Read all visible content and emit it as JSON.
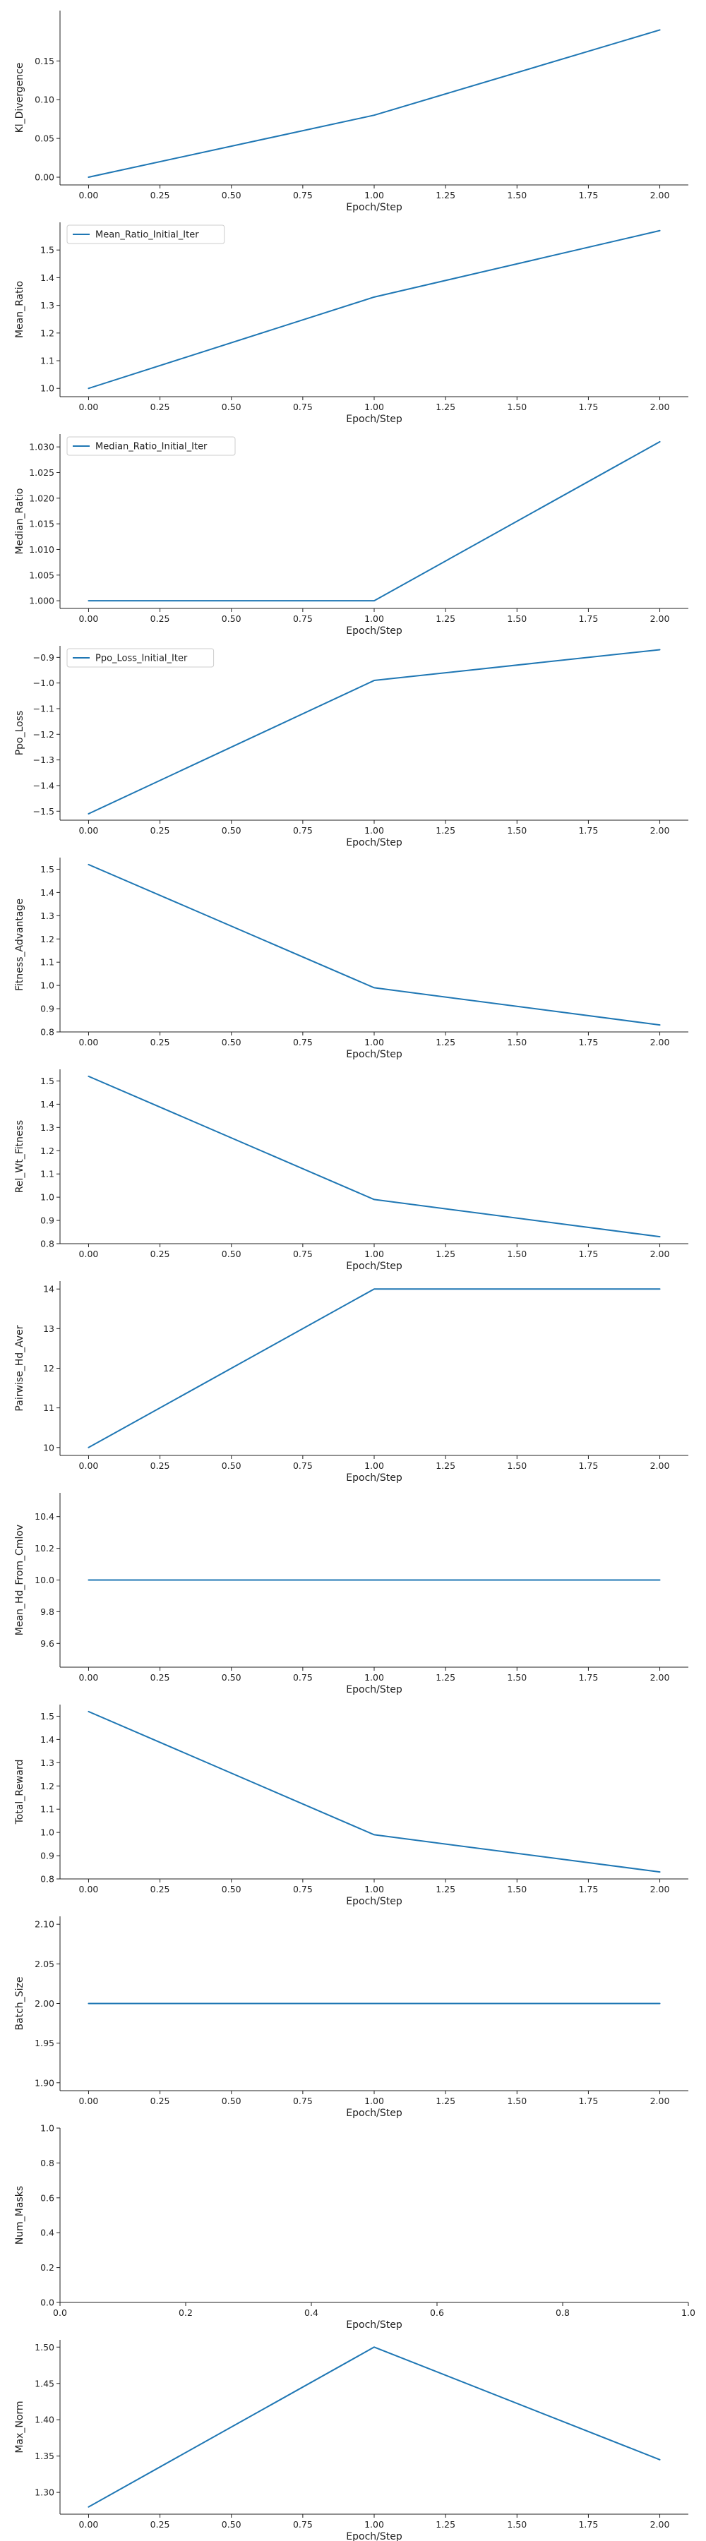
{
  "colors": {
    "line": "#1f77b4",
    "axis": "#222222",
    "legend_border": "#cccccc"
  },
  "chart_data": [
    {
      "type": "line",
      "xlabel": "Epoch/Step",
      "ylabel": "Kl_Divergence",
      "xlim": [
        -0.1,
        2.1
      ],
      "ylim": [
        -0.01,
        0.215
      ],
      "xticks": [
        0.0,
        0.25,
        0.5,
        0.75,
        1.0,
        1.25,
        1.5,
        1.75,
        2.0
      ],
      "xtick_labels": [
        "0.00",
        "0.25",
        "0.50",
        "0.75",
        "1.00",
        "1.25",
        "1.50",
        "1.75",
        "2.00"
      ],
      "yticks": [
        0.0,
        0.05,
        0.1,
        0.15
      ],
      "ytick_labels": [
        "0.00",
        "0.05",
        "0.10",
        "0.15"
      ],
      "series": [
        {
          "x": [
            0,
            1,
            2
          ],
          "values": [
            0.0,
            0.08,
            0.19
          ]
        }
      ]
    },
    {
      "type": "line",
      "xlabel": "Epoch/Step",
      "ylabel": "Mean_Ratio",
      "legend": "top-left",
      "xlim": [
        -0.1,
        2.1
      ],
      "ylim": [
        0.97,
        1.6
      ],
      "xticks": [
        0.0,
        0.25,
        0.5,
        0.75,
        1.0,
        1.25,
        1.5,
        1.75,
        2.0
      ],
      "xtick_labels": [
        "0.00",
        "0.25",
        "0.50",
        "0.75",
        "1.00",
        "1.25",
        "1.50",
        "1.75",
        "2.00"
      ],
      "yticks": [
        1.0,
        1.1,
        1.2,
        1.3,
        1.4,
        1.5
      ],
      "ytick_labels": [
        "1.0",
        "1.1",
        "1.2",
        "1.3",
        "1.4",
        "1.5"
      ],
      "series": [
        {
          "name": "Mean_Ratio_Initial_Iter",
          "x": [
            0,
            1,
            2
          ],
          "values": [
            1.0,
            1.33,
            1.57
          ]
        }
      ]
    },
    {
      "type": "line",
      "xlabel": "Epoch/Step",
      "ylabel": "Median_Ratio",
      "legend": "top-left",
      "xlim": [
        -0.1,
        2.1
      ],
      "ylim": [
        0.9985,
        1.0325
      ],
      "xticks": [
        0.0,
        0.25,
        0.5,
        0.75,
        1.0,
        1.25,
        1.5,
        1.75,
        2.0
      ],
      "xtick_labels": [
        "0.00",
        "0.25",
        "0.50",
        "0.75",
        "1.00",
        "1.25",
        "1.50",
        "1.75",
        "2.00"
      ],
      "yticks": [
        1.0,
        1.005,
        1.01,
        1.015,
        1.02,
        1.025,
        1.03
      ],
      "ytick_labels": [
        "1.000",
        "1.005",
        "1.010",
        "1.015",
        "1.020",
        "1.025",
        "1.030"
      ],
      "series": [
        {
          "name": "Median_Ratio_Initial_Iter",
          "x": [
            0,
            1,
            2
          ],
          "values": [
            1.0,
            1.0,
            1.031
          ]
        }
      ]
    },
    {
      "type": "line",
      "xlabel": "Epoch/Step",
      "ylabel": "Ppo_Loss",
      "legend": "top-left",
      "xlim": [
        -0.1,
        2.1
      ],
      "ylim": [
        -1.535,
        -0.855
      ],
      "xticks": [
        0.0,
        0.25,
        0.5,
        0.75,
        1.0,
        1.25,
        1.5,
        1.75,
        2.0
      ],
      "xtick_labels": [
        "0.00",
        "0.25",
        "0.50",
        "0.75",
        "1.00",
        "1.25",
        "1.50",
        "1.75",
        "2.00"
      ],
      "yticks": [
        -1.5,
        -1.4,
        -1.3,
        -1.2,
        -1.1,
        -1.0,
        -0.9
      ],
      "ytick_labels": [
        "−1.5",
        "−1.4",
        "−1.3",
        "−1.2",
        "−1.1",
        "−1.0",
        "−0.9"
      ],
      "series": [
        {
          "name": "Ppo_Loss_Initial_Iter",
          "x": [
            0,
            1,
            2
          ],
          "values": [
            -1.51,
            -0.99,
            -0.87
          ]
        }
      ]
    },
    {
      "type": "line",
      "xlabel": "Epoch/Step",
      "ylabel": "Fitness_Advantage",
      "xlim": [
        -0.1,
        2.1
      ],
      "ylim": [
        0.8,
        1.55
      ],
      "xticks": [
        0.0,
        0.25,
        0.5,
        0.75,
        1.0,
        1.25,
        1.5,
        1.75,
        2.0
      ],
      "xtick_labels": [
        "0.00",
        "0.25",
        "0.50",
        "0.75",
        "1.00",
        "1.25",
        "1.50",
        "1.75",
        "2.00"
      ],
      "yticks": [
        0.8,
        0.9,
        1.0,
        1.1,
        1.2,
        1.3,
        1.4,
        1.5
      ],
      "ytick_labels": [
        "0.8",
        "0.9",
        "1.0",
        "1.1",
        "1.2",
        "1.3",
        "1.4",
        "1.5"
      ],
      "series": [
        {
          "x": [
            0,
            1,
            2
          ],
          "values": [
            1.52,
            0.99,
            0.83
          ]
        }
      ]
    },
    {
      "type": "line",
      "xlabel": "Epoch/Step",
      "ylabel": "Rel_Wt_Fitness",
      "xlim": [
        -0.1,
        2.1
      ],
      "ylim": [
        0.8,
        1.55
      ],
      "xticks": [
        0.0,
        0.25,
        0.5,
        0.75,
        1.0,
        1.25,
        1.5,
        1.75,
        2.0
      ],
      "xtick_labels": [
        "0.00",
        "0.25",
        "0.50",
        "0.75",
        "1.00",
        "1.25",
        "1.50",
        "1.75",
        "2.00"
      ],
      "yticks": [
        0.8,
        0.9,
        1.0,
        1.1,
        1.2,
        1.3,
        1.4,
        1.5
      ],
      "ytick_labels": [
        "0.8",
        "0.9",
        "1.0",
        "1.1",
        "1.2",
        "1.3",
        "1.4",
        "1.5"
      ],
      "series": [
        {
          "x": [
            0,
            1,
            2
          ],
          "values": [
            1.52,
            0.99,
            0.83
          ]
        }
      ]
    },
    {
      "type": "line",
      "xlabel": "Epoch/Step",
      "ylabel": "Pairwise_Hd_Aver",
      "xlim": [
        -0.1,
        2.1
      ],
      "ylim": [
        9.8,
        14.2
      ],
      "xticks": [
        0.0,
        0.25,
        0.5,
        0.75,
        1.0,
        1.25,
        1.5,
        1.75,
        2.0
      ],
      "xtick_labels": [
        "0.00",
        "0.25",
        "0.50",
        "0.75",
        "1.00",
        "1.25",
        "1.50",
        "1.75",
        "2.00"
      ],
      "yticks": [
        10,
        11,
        12,
        13,
        14
      ],
      "ytick_labels": [
        "10",
        "11",
        "12",
        "13",
        "14"
      ],
      "series": [
        {
          "x": [
            0,
            1,
            2
          ],
          "values": [
            10,
            14,
            14
          ]
        }
      ]
    },
    {
      "type": "line",
      "xlabel": "Epoch/Step",
      "ylabel": "Mean_Hd_From_Cmlov",
      "xlim": [
        -0.1,
        2.1
      ],
      "ylim": [
        9.45,
        10.55
      ],
      "xticks": [
        0.0,
        0.25,
        0.5,
        0.75,
        1.0,
        1.25,
        1.5,
        1.75,
        2.0
      ],
      "xtick_labels": [
        "0.00",
        "0.25",
        "0.50",
        "0.75",
        "1.00",
        "1.25",
        "1.50",
        "1.75",
        "2.00"
      ],
      "yticks": [
        9.6,
        9.8,
        10.0,
        10.2,
        10.4
      ],
      "ytick_labels": [
        "9.6",
        "9.8",
        "10.0",
        "10.2",
        "10.4"
      ],
      "series": [
        {
          "x": [
            0,
            1,
            2
          ],
          "values": [
            10,
            10,
            10
          ]
        }
      ]
    },
    {
      "type": "line",
      "xlabel": "Epoch/Step",
      "ylabel": "Total_Reward",
      "xlim": [
        -0.1,
        2.1
      ],
      "ylim": [
        0.8,
        1.55
      ],
      "xticks": [
        0.0,
        0.25,
        0.5,
        0.75,
        1.0,
        1.25,
        1.5,
        1.75,
        2.0
      ],
      "xtick_labels": [
        "0.00",
        "0.25",
        "0.50",
        "0.75",
        "1.00",
        "1.25",
        "1.50",
        "1.75",
        "2.00"
      ],
      "yticks": [
        0.8,
        0.9,
        1.0,
        1.1,
        1.2,
        1.3,
        1.4,
        1.5
      ],
      "ytick_labels": [
        "0.8",
        "0.9",
        "1.0",
        "1.1",
        "1.2",
        "1.3",
        "1.4",
        "1.5"
      ],
      "series": [
        {
          "x": [
            0,
            1,
            2
          ],
          "values": [
            1.52,
            0.99,
            0.83
          ]
        }
      ]
    },
    {
      "type": "line",
      "xlabel": "Epoch/Step",
      "ylabel": "Batch_Size",
      "xlim": [
        -0.1,
        2.1
      ],
      "ylim": [
        1.89,
        2.11
      ],
      "xticks": [
        0.0,
        0.25,
        0.5,
        0.75,
        1.0,
        1.25,
        1.5,
        1.75,
        2.0
      ],
      "xtick_labels": [
        "0.00",
        "0.25",
        "0.50",
        "0.75",
        "1.00",
        "1.25",
        "1.50",
        "1.75",
        "2.00"
      ],
      "yticks": [
        1.9,
        1.95,
        2.0,
        2.05,
        2.1
      ],
      "ytick_labels": [
        "1.90",
        "1.95",
        "2.00",
        "2.05",
        "2.10"
      ],
      "series": [
        {
          "x": [
            0,
            1,
            2
          ],
          "values": [
            2,
            2,
            2
          ]
        }
      ]
    },
    {
      "type": "line",
      "xlabel": "Epoch/Step",
      "ylabel": "Num_Masks",
      "xlim": [
        0,
        1
      ],
      "ylim": [
        0,
        1
      ],
      "xticks": [
        0.0,
        0.2,
        0.4,
        0.6,
        0.8,
        1.0
      ],
      "xtick_labels": [
        "0.0",
        "0.2",
        "0.4",
        "0.6",
        "0.8",
        "1.0"
      ],
      "yticks": [
        0.0,
        0.2,
        0.4,
        0.6,
        0.8,
        1.0
      ],
      "ytick_labels": [
        "0.0",
        "0.2",
        "0.4",
        "0.6",
        "0.8",
        "1.0"
      ],
      "series": []
    },
    {
      "type": "line",
      "xlabel": "Epoch/Step",
      "ylabel": "Max_Norm",
      "xlim": [
        -0.1,
        2.1
      ],
      "ylim": [
        1.27,
        1.51
      ],
      "xticks": [
        0.0,
        0.25,
        0.5,
        0.75,
        1.0,
        1.25,
        1.5,
        1.75,
        2.0
      ],
      "xtick_labels": [
        "0.00",
        "0.25",
        "0.50",
        "0.75",
        "1.00",
        "1.25",
        "1.50",
        "1.75",
        "2.00"
      ],
      "yticks": [
        1.3,
        1.35,
        1.4,
        1.45,
        1.5
      ],
      "ytick_labels": [
        "1.30",
        "1.35",
        "1.40",
        "1.45",
        "1.50"
      ],
      "series": [
        {
          "x": [
            0,
            1,
            2
          ],
          "values": [
            1.28,
            1.5,
            1.345
          ]
        }
      ]
    }
  ]
}
